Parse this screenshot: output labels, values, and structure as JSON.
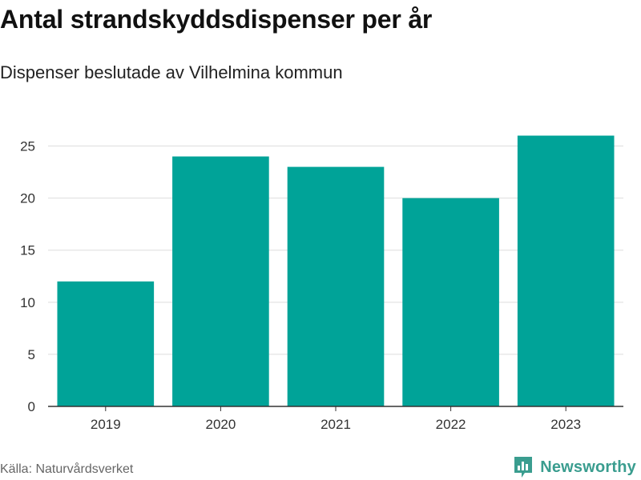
{
  "title": "Antal strandskyddsdispenser per år",
  "subtitle": "Dispenser beslutade av Vilhelmina kommun",
  "source": "Källa: Naturvårdsverket",
  "brand": "Newsworthy",
  "colors": {
    "bar": "#00a398",
    "grid": "#dddddd",
    "axis": "#333333",
    "brand": "#3a9d8f"
  },
  "chart_data": {
    "type": "bar",
    "categories": [
      "2019",
      "2020",
      "2021",
      "2022",
      "2023"
    ],
    "values": [
      12,
      24,
      23,
      20,
      26
    ],
    "title": "Antal strandskyddsdispenser per år",
    "subtitle": "Dispenser beslutade av Vilhelmina kommun",
    "ylim": [
      0,
      27.5
    ],
    "yticks": [
      0,
      5,
      10,
      15,
      20,
      25
    ],
    "grid": true,
    "legend": "none"
  }
}
